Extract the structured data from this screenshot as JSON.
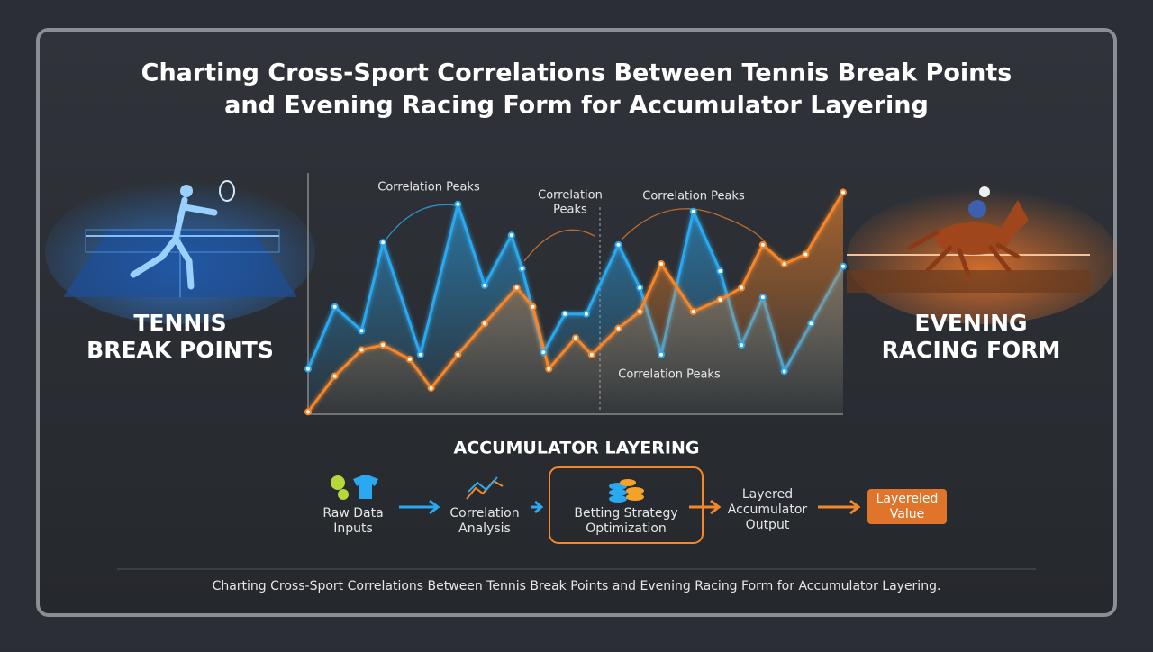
{
  "title": [
    "Charting Cross-Sport Correlations Between Tennis Break Points",
    "and Evening Racing Form for Accumulator Layering"
  ],
  "left_label": [
    "TENNIS",
    "BREAK POINTS"
  ],
  "right_label": [
    "EVENING",
    "RACING FORM"
  ],
  "chart_data": {
    "type": "line",
    "xlim": [
      0,
      100
    ],
    "ylim": [
      0,
      100
    ],
    "annotations": [
      [
        "Correlation Peaks"
      ],
      [
        "Correlation",
        "Peaks"
      ],
      [
        "Correlation Peaks"
      ],
      [
        "Correlation Peaks"
      ]
    ],
    "series": [
      {
        "color": "#2aa8f0",
        "x": [
          0,
          5,
          10,
          14,
          21,
          28,
          33,
          38,
          40,
          44,
          48,
          52,
          58,
          62,
          66,
          72,
          77,
          81,
          85,
          89,
          94,
          100
        ],
        "values": [
          19,
          45,
          35,
          72,
          25,
          88,
          54,
          75,
          61,
          26,
          42,
          42,
          71,
          53,
          25,
          85,
          60,
          29,
          49,
          18,
          38,
          62
        ]
      },
      {
        "color": "#f5862a",
        "x": [
          0,
          5,
          10,
          14,
          19,
          23,
          28,
          33,
          39,
          42,
          45,
          50,
          53,
          58,
          62,
          66,
          72,
          77,
          81,
          85,
          89,
          93,
          100
        ],
        "values": [
          1,
          16,
          27,
          29,
          23,
          11,
          25,
          38,
          53,
          45,
          19,
          32,
          25,
          36,
          43,
          63,
          43,
          48,
          53,
          71,
          63,
          67,
          93
        ]
      }
    ]
  },
  "flow": {
    "heading": "ACCUMULATOR LAYERING",
    "steps": [
      [
        "Raw Data",
        "Inputs"
      ],
      [
        "Correlation",
        "Analysis"
      ],
      [
        "Betting Strategy",
        "Optimization"
      ],
      [
        "Layered",
        "Accumulator",
        "Output"
      ],
      [
        "Layereled",
        "Value"
      ]
    ]
  },
  "caption": "Charting Cross-Sport Correlations Between Tennis Break Points and Evening Racing Form for Accumulator Layering."
}
